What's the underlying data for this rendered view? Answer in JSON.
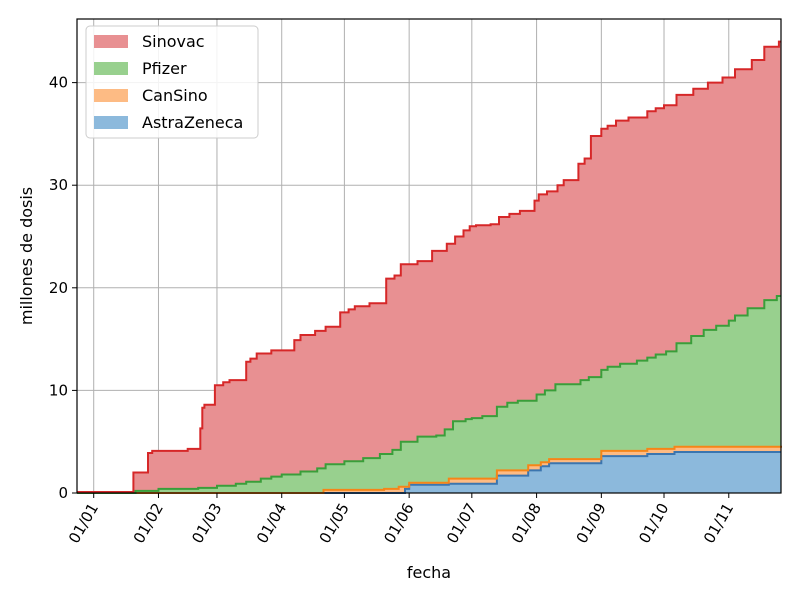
{
  "chart_data": {
    "type": "area",
    "stacked": true,
    "step": true,
    "xlabel": "fecha",
    "ylabel": "millones de dosis",
    "xlim": [
      "2020-12-24",
      "2021-11-26"
    ],
    "ylim": [
      0,
      46.2
    ],
    "yticks": [
      0,
      10,
      20,
      30,
      40
    ],
    "xticks": [
      {
        "date": "2021-01-01",
        "label": "01/01"
      },
      {
        "date": "2021-02-01",
        "label": "01/02"
      },
      {
        "date": "2021-03-01",
        "label": "01/03"
      },
      {
        "date": "2021-04-01",
        "label": "01/04"
      },
      {
        "date": "2021-05-01",
        "label": "01/05"
      },
      {
        "date": "2021-06-01",
        "label": "01/06"
      },
      {
        "date": "2021-07-01",
        "label": "01/07"
      },
      {
        "date": "2021-08-01",
        "label": "01/08"
      },
      {
        "date": "2021-09-01",
        "label": "01/09"
      },
      {
        "date": "2021-10-01",
        "label": "01/10"
      },
      {
        "date": "2021-11-01",
        "label": "01/11"
      }
    ],
    "grid": true,
    "legend_position": "top-left",
    "legend_order": [
      "Sinovac",
      "Pfizer",
      "CanSino",
      "AstraZeneca"
    ],
    "series": [
      {
        "name": "AstraZeneca",
        "fill": "#8cb9dc",
        "line": "#3b75af",
        "cumulative_points": [
          [
            "2020-12-24",
            0
          ],
          [
            "2021-05-27",
            0
          ],
          [
            "2021-05-30",
            0.4
          ],
          [
            "2021-06-01",
            0.8
          ],
          [
            "2021-06-20",
            0.9
          ],
          [
            "2021-07-13",
            1.7
          ],
          [
            "2021-07-28",
            2.2
          ],
          [
            "2021-08-03",
            2.6
          ],
          [
            "2021-08-07",
            2.9
          ],
          [
            "2021-09-01",
            3.6
          ],
          [
            "2021-09-23",
            3.8
          ],
          [
            "2021-10-06",
            4.0
          ],
          [
            "2021-11-26",
            4.0
          ]
        ]
      },
      {
        "name": "CanSino",
        "fill": "#fdbb84",
        "line": "#f58518",
        "cumulative_points": [
          [
            "2020-12-24",
            0
          ],
          [
            "2021-04-20",
            0
          ],
          [
            "2021-04-21",
            0.3
          ],
          [
            "2021-05-20",
            0.4
          ],
          [
            "2021-05-27",
            0.6
          ],
          [
            "2021-06-01",
            1.0
          ],
          [
            "2021-06-20",
            1.4
          ],
          [
            "2021-07-13",
            2.2
          ],
          [
            "2021-07-28",
            2.7
          ],
          [
            "2021-08-03",
            3.0
          ],
          [
            "2021-08-07",
            3.3
          ],
          [
            "2021-09-01",
            4.1
          ],
          [
            "2021-09-23",
            4.3
          ],
          [
            "2021-10-06",
            4.5
          ],
          [
            "2021-11-26",
            4.6
          ]
        ]
      },
      {
        "name": "Pfizer",
        "fill": "#98d08e",
        "line": "#3a9e3a",
        "cumulative_points": [
          [
            "2020-12-24",
            0
          ],
          [
            "2021-01-20",
            0
          ],
          [
            "2021-01-21",
            0.2
          ],
          [
            "2021-02-01",
            0.4
          ],
          [
            "2021-02-20",
            0.5
          ],
          [
            "2021-03-01",
            0.7
          ],
          [
            "2021-03-10",
            0.9
          ],
          [
            "2021-03-15",
            1.1
          ],
          [
            "2021-03-22",
            1.4
          ],
          [
            "2021-03-27",
            1.6
          ],
          [
            "2021-04-01",
            1.8
          ],
          [
            "2021-04-10",
            2.1
          ],
          [
            "2021-04-18",
            2.4
          ],
          [
            "2021-04-22",
            2.8
          ],
          [
            "2021-05-01",
            3.1
          ],
          [
            "2021-05-10",
            3.4
          ],
          [
            "2021-05-18",
            3.8
          ],
          [
            "2021-05-24",
            4.2
          ],
          [
            "2021-05-28",
            5.0
          ],
          [
            "2021-06-05",
            5.5
          ],
          [
            "2021-06-14",
            5.6
          ],
          [
            "2021-06-18",
            6.2
          ],
          [
            "2021-06-22",
            7.0
          ],
          [
            "2021-06-28",
            7.2
          ],
          [
            "2021-07-01",
            7.3
          ],
          [
            "2021-07-06",
            7.5
          ],
          [
            "2021-07-13",
            8.4
          ],
          [
            "2021-07-18",
            8.8
          ],
          [
            "2021-07-23",
            9.0
          ],
          [
            "2021-08-01",
            9.6
          ],
          [
            "2021-08-05",
            10.0
          ],
          [
            "2021-08-10",
            10.6
          ],
          [
            "2021-08-22",
            11.0
          ],
          [
            "2021-08-26",
            11.3
          ],
          [
            "2021-09-01",
            12.0
          ],
          [
            "2021-09-04",
            12.3
          ],
          [
            "2021-09-10",
            12.6
          ],
          [
            "2021-09-18",
            12.9
          ],
          [
            "2021-09-23",
            13.2
          ],
          [
            "2021-09-27",
            13.5
          ],
          [
            "2021-10-02",
            13.8
          ],
          [
            "2021-10-07",
            14.6
          ],
          [
            "2021-10-14",
            15.3
          ],
          [
            "2021-10-20",
            15.9
          ],
          [
            "2021-10-26",
            16.3
          ],
          [
            "2021-11-01",
            16.8
          ],
          [
            "2021-11-04",
            17.3
          ],
          [
            "2021-11-10",
            18.0
          ],
          [
            "2021-11-18",
            18.8
          ],
          [
            "2021-11-24",
            19.2
          ],
          [
            "2021-11-26",
            19.2
          ]
        ]
      },
      {
        "name": "Sinovac",
        "fill": "#e89092",
        "line": "#d62728",
        "cumulative_points": [
          [
            "2020-12-24",
            0.1
          ],
          [
            "2021-01-05",
            0.1
          ],
          [
            "2021-01-20",
            2.0
          ],
          [
            "2021-01-27",
            3.9
          ],
          [
            "2021-01-29",
            4.1
          ],
          [
            "2021-02-15",
            4.3
          ],
          [
            "2021-02-21",
            6.3
          ],
          [
            "2021-02-22",
            8.3
          ],
          [
            "2021-02-23",
            8.6
          ],
          [
            "2021-02-28",
            10.5
          ],
          [
            "2021-03-04",
            10.8
          ],
          [
            "2021-03-07",
            11.0
          ],
          [
            "2021-03-15",
            12.8
          ],
          [
            "2021-03-17",
            13.1
          ],
          [
            "2021-03-20",
            13.6
          ],
          [
            "2021-03-27",
            13.9
          ],
          [
            "2021-04-07",
            14.9
          ],
          [
            "2021-04-10",
            15.4
          ],
          [
            "2021-04-17",
            15.8
          ],
          [
            "2021-04-22",
            16.2
          ],
          [
            "2021-04-29",
            17.6
          ],
          [
            "2021-05-03",
            17.9
          ],
          [
            "2021-05-06",
            18.2
          ],
          [
            "2021-05-13",
            18.5
          ],
          [
            "2021-05-21",
            20.9
          ],
          [
            "2021-05-25",
            21.2
          ],
          [
            "2021-05-28",
            22.3
          ],
          [
            "2021-06-05",
            22.6
          ],
          [
            "2021-06-12",
            23.6
          ],
          [
            "2021-06-19",
            24.3
          ],
          [
            "2021-06-23",
            25.0
          ],
          [
            "2021-06-27",
            25.6
          ],
          [
            "2021-06-30",
            26.0
          ],
          [
            "2021-07-03",
            26.1
          ],
          [
            "2021-07-10",
            26.2
          ],
          [
            "2021-07-14",
            26.9
          ],
          [
            "2021-07-19",
            27.2
          ],
          [
            "2021-07-24",
            27.5
          ],
          [
            "2021-07-31",
            28.5
          ],
          [
            "2021-08-02",
            29.1
          ],
          [
            "2021-08-06",
            29.4
          ],
          [
            "2021-08-11",
            30.0
          ],
          [
            "2021-08-14",
            30.5
          ],
          [
            "2021-08-21",
            32.1
          ],
          [
            "2021-08-24",
            32.6
          ],
          [
            "2021-08-27",
            34.8
          ],
          [
            "2021-09-01",
            35.5
          ],
          [
            "2021-09-04",
            35.8
          ],
          [
            "2021-09-08",
            36.3
          ],
          [
            "2021-09-14",
            36.6
          ],
          [
            "2021-09-23",
            37.2
          ],
          [
            "2021-09-27",
            37.5
          ],
          [
            "2021-10-01",
            37.8
          ],
          [
            "2021-10-07",
            38.8
          ],
          [
            "2021-10-15",
            39.4
          ],
          [
            "2021-10-22",
            40.0
          ],
          [
            "2021-10-29",
            40.5
          ],
          [
            "2021-11-04",
            41.3
          ],
          [
            "2021-11-12",
            42.2
          ],
          [
            "2021-11-18",
            43.5
          ],
          [
            "2021-11-25",
            44.0
          ],
          [
            "2021-11-26",
            44.0
          ]
        ]
      }
    ]
  }
}
